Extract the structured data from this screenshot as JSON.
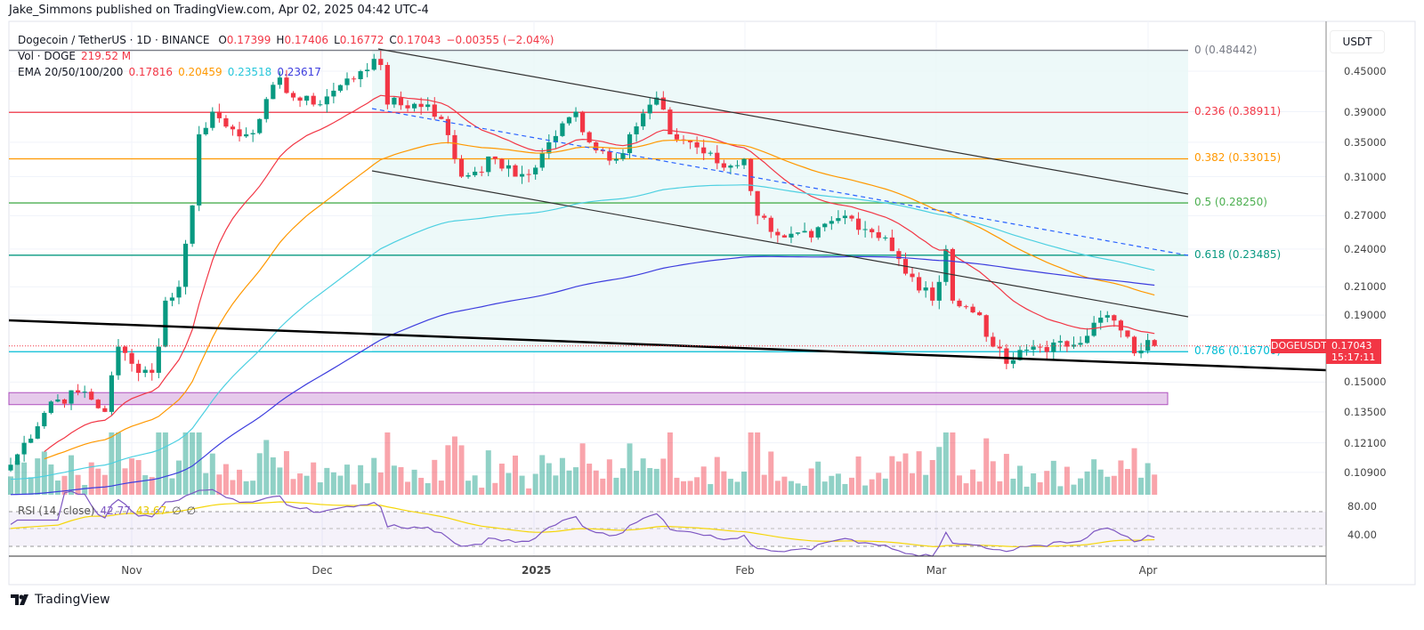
{
  "publisher_line": "Jake_Simmons published on TradingView.com, Apr 02, 2025 04:42 UTC-4",
  "legend": {
    "symbol": "Dogecoin / TetherUS · 1D · BINANCE",
    "o_label": "O",
    "o": "0.17399",
    "h_label": "H",
    "h": "0.17406",
    "l_label": "L",
    "l": "0.16772",
    "c_label": "C",
    "c": "0.17043",
    "change": "−0.00355 (−2.04%)",
    "vol_label": "Vol · DOGE",
    "vol": "219.52 M",
    "ema_label": "EMA 20/50/100/200",
    "ema20": "0.17816",
    "ema50": "0.20459",
    "ema100": "0.23518",
    "ema200": "0.23617",
    "rsi_label": "RSI (14, close)",
    "rsi": "42.77",
    "rsi_ma": "43.67",
    "rsi_na1": "∅",
    "rsi_na2": "∅"
  },
  "price_axis": {
    "currency": "USDT",
    "ticks": [
      "0.45000",
      "0.39000",
      "0.35000",
      "0.31000",
      "0.27000",
      "0.24000",
      "0.21000",
      "0.19000",
      "0.15000",
      "0.13500",
      "0.12100",
      "0.10900"
    ],
    "rsi_ticks": [
      "80.00",
      "40.00"
    ]
  },
  "time_axis": [
    "Nov",
    "Dec",
    "2025",
    "Feb",
    "Mar",
    "Apr"
  ],
  "current": {
    "symbol": "DOGEUSDT",
    "price": "0.17043",
    "countdown": "15:17:11"
  },
  "fib_levels": [
    {
      "label": "0 (0.48442)",
      "level": 0,
      "price": 0.48442,
      "color": "#787b86"
    },
    {
      "label": "0.236 (0.38911)",
      "level": 0.236,
      "price": 0.38911,
      "color": "#f23645"
    },
    {
      "label": "0.382 (0.33015)",
      "level": 0.382,
      "price": 0.33015,
      "color": "#ff9800"
    },
    {
      "label": "0.5 (0.28250)",
      "level": 0.5,
      "price": 0.2825,
      "color": "#4caf50"
    },
    {
      "label": "0.618 (0.23485)",
      "level": 0.618,
      "price": 0.23485,
      "color": "#089981"
    },
    {
      "label": "0.786 (0.16700)",
      "level": 0.786,
      "price": 0.167,
      "color": "#00bcd4"
    }
  ],
  "colors": {
    "up": "#089981",
    "down": "#f23645",
    "ema20": "#f23645",
    "ema50": "#ff9800",
    "ema100": "#4dd0e1",
    "ema200": "#3d3dde",
    "rsi": "#7e57c2",
    "rsi_ma": "#f5d60a"
  },
  "footer": {
    "brand": "TradingView"
  },
  "chart_data": {
    "type": "candlestick",
    "scale": "log",
    "ylim": [
      0.105,
      0.5
    ],
    "grid": true,
    "xrange": [
      "2024-10-14",
      "2025-04-02"
    ],
    "closes": [
      [
        "2024-10-14",
        0.112
      ],
      [
        "2024-10-20",
        0.14
      ],
      [
        "2024-10-25",
        0.145
      ],
      [
        "2024-10-28",
        0.135
      ],
      [
        "2024-10-30",
        0.17
      ],
      [
        "2024-11-01",
        0.16
      ],
      [
        "2024-11-04",
        0.155
      ],
      [
        "2024-11-05",
        0.17
      ],
      [
        "2024-11-06",
        0.2
      ],
      [
        "2024-11-08",
        0.21
      ],
      [
        "2024-11-10",
        0.28
      ],
      [
        "2024-11-11",
        0.36
      ],
      [
        "2024-11-13",
        0.39
      ],
      [
        "2024-11-15",
        0.37
      ],
      [
        "2024-11-18",
        0.36
      ],
      [
        "2024-11-20",
        0.38
      ],
      [
        "2024-11-23",
        0.44
      ],
      [
        "2024-11-25",
        0.41
      ],
      [
        "2024-11-28",
        0.4
      ],
      [
        "2024-12-01",
        0.42
      ],
      [
        "2024-12-05",
        0.45
      ],
      [
        "2024-12-07",
        0.47
      ],
      [
        "2024-12-08",
        0.46
      ],
      [
        "2024-12-09",
        0.4
      ],
      [
        "2024-12-15",
        0.4
      ],
      [
        "2024-12-17",
        0.38
      ],
      [
        "2024-12-19",
        0.33
      ],
      [
        "2024-12-20",
        0.31
      ],
      [
        "2024-12-25",
        0.33
      ],
      [
        "2024-12-28",
        0.31
      ],
      [
        "2024-12-31",
        0.32
      ],
      [
        "2025-01-02",
        0.35
      ],
      [
        "2025-01-06",
        0.39
      ],
      [
        "2025-01-08",
        0.35
      ],
      [
        "2025-01-12",
        0.33
      ],
      [
        "2025-01-14",
        0.36
      ],
      [
        "2025-01-18",
        0.41
      ],
      [
        "2025-01-20",
        0.36
      ],
      [
        "2025-01-23",
        0.35
      ],
      [
        "2025-01-28",
        0.32
      ],
      [
        "2025-01-31",
        0.33
      ],
      [
        "2025-02-02",
        0.27
      ],
      [
        "2025-02-06",
        0.25
      ],
      [
        "2025-02-10",
        0.25
      ],
      [
        "2025-02-15",
        0.27
      ],
      [
        "2025-02-21",
        0.25
      ],
      [
        "2025-02-24",
        0.22
      ],
      [
        "2025-02-28",
        0.2
      ],
      [
        "2025-03-02",
        0.24
      ],
      [
        "2025-03-03",
        0.2
      ],
      [
        "2025-03-07",
        0.19
      ],
      [
        "2025-03-09",
        0.17
      ],
      [
        "2025-03-11",
        0.16
      ],
      [
        "2025-03-15",
        0.17
      ],
      [
        "2025-03-20",
        0.17
      ],
      [
        "2025-03-26",
        0.19
      ],
      [
        "2025-03-28",
        0.18
      ],
      [
        "2025-03-30",
        0.166
      ],
      [
        "2025-04-01",
        0.174
      ],
      [
        "2025-04-02",
        0.17043
      ]
    ]
  }
}
